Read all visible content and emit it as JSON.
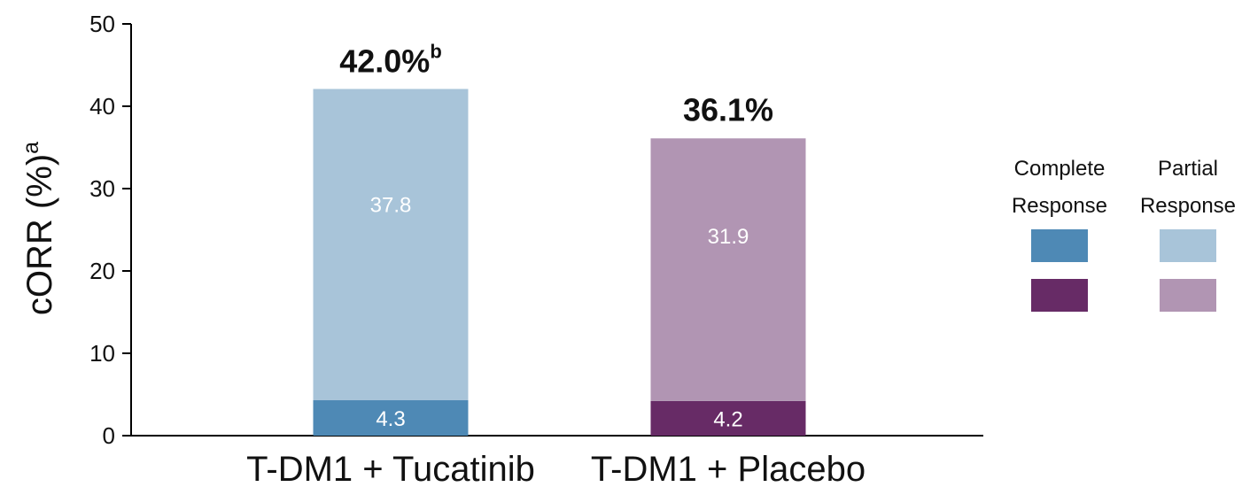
{
  "chart_data": {
    "type": "bar",
    "stacked": true,
    "ylabel": "cORR (%)",
    "ylabel_superscript": "a",
    "ylim": [
      0,
      50
    ],
    "yticks": [
      "0",
      "10",
      "20",
      "30",
      "40",
      "50"
    ],
    "categories": [
      "T-DM1 + Tucatinib",
      "T-DM1 + Placebo"
    ],
    "totals": [
      42.0,
      36.1
    ],
    "total_labels": [
      "42.0%",
      "36.1%"
    ],
    "total_label_superscripts": [
      "b",
      ""
    ],
    "series": [
      {
        "name": "Complete Response",
        "values": [
          4.3,
          4.2
        ],
        "value_labels": [
          "4.3",
          "4.2"
        ],
        "colors": [
          "#4e89b5",
          "#672b66"
        ]
      },
      {
        "name": "Partial Response",
        "values": [
          37.8,
          31.9
        ],
        "value_labels": [
          "37.8",
          "31.9"
        ],
        "colors": [
          "#a8c4d9",
          "#b195b3"
        ]
      }
    ],
    "legend": {
      "placement": "right",
      "columns": [
        {
          "line1": "Complete",
          "line2": "Response",
          "colors": [
            "#4e89b5",
            "#672b66"
          ]
        },
        {
          "line1": "Partial",
          "line2": "Response",
          "colors": [
            "#a8c4d9",
            "#b195b3"
          ]
        }
      ]
    }
  }
}
